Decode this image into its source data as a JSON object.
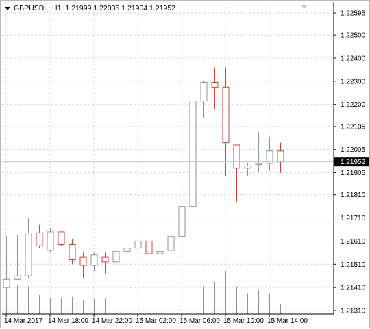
{
  "header": {
    "symbol_timeframe": "GBPUSD...,H1",
    "ohlc": "1.21999 1.22035 1.21904 1.21952",
    "menu_icon": "triangle-down-icon"
  },
  "price_axis": {
    "labels": [
      "1.22595",
      "1.22500",
      "1.22400",
      "1.22300",
      "1.22200",
      "1.22105",
      "1.22005",
      "1.21905",
      "1.21810",
      "1.21710",
      "1.21610",
      "1.21510",
      "1.21410",
      "1.21310"
    ],
    "current_price": "1.21952"
  },
  "time_axis": {
    "labels": [
      "14 Mar 2017",
      "14 Mar 18:00",
      "14 Mar 22:00",
      "15 Mar 02:00",
      "15 Mar 06:00",
      "15 Mar 10:00",
      "15 Mar 14:00"
    ]
  },
  "colors": {
    "bull": "#8a92a8",
    "bear": "#c0493b",
    "grid": "#d4d4d4",
    "volume": "#8a92a8",
    "price_tag_bg": "#000000"
  },
  "chart_data": {
    "type": "candlestick",
    "symbol": "GBPUSD",
    "timeframe": "H1",
    "ylim": [
      1.2126,
      1.2263
    ],
    "grid": true,
    "candles": [
      {
        "o": 1.2141,
        "h": 1.2163,
        "l": 1.21385,
        "c": 1.21445
      },
      {
        "o": 1.21445,
        "h": 1.21635,
        "l": 1.2144,
        "c": 1.2146
      },
      {
        "o": 1.2146,
        "h": 1.2171,
        "l": 1.2145,
        "c": 1.21645
      },
      {
        "o": 1.21645,
        "h": 1.2168,
        "l": 1.2158,
        "c": 1.2159
      },
      {
        "o": 1.2157,
        "h": 1.21665,
        "l": 1.2156,
        "c": 1.2165
      },
      {
        "o": 1.2165,
        "h": 1.2165,
        "l": 1.2159,
        "c": 1.21595
      },
      {
        "o": 1.21595,
        "h": 1.2162,
        "l": 1.2151,
        "c": 1.2153
      },
      {
        "o": 1.2154,
        "h": 1.2156,
        "l": 1.2145,
        "c": 1.21505
      },
      {
        "o": 1.21505,
        "h": 1.2156,
        "l": 1.2148,
        "c": 1.2155
      },
      {
        "o": 1.2154,
        "h": 1.2156,
        "l": 1.2147,
        "c": 1.2152
      },
      {
        "o": 1.2152,
        "h": 1.2158,
        "l": 1.2151,
        "c": 1.21565
      },
      {
        "o": 1.21565,
        "h": 1.216,
        "l": 1.2154,
        "c": 1.2158
      },
      {
        "o": 1.2158,
        "h": 1.2163,
        "l": 1.21565,
        "c": 1.2161
      },
      {
        "o": 1.2161,
        "h": 1.21625,
        "l": 1.2154,
        "c": 1.21555
      },
      {
        "o": 1.21555,
        "h": 1.21575,
        "l": 1.21545,
        "c": 1.21565
      },
      {
        "o": 1.2157,
        "h": 1.2164,
        "l": 1.2156,
        "c": 1.2163
      },
      {
        "o": 1.2163,
        "h": 1.2176,
        "l": 1.2163,
        "c": 1.2176
      },
      {
        "o": 1.2176,
        "h": 1.2257,
        "l": 1.2174,
        "c": 1.22215
      },
      {
        "o": 1.22215,
        "h": 1.223,
        "l": 1.2214,
        "c": 1.22295
      },
      {
        "o": 1.22295,
        "h": 1.2236,
        "l": 1.2218,
        "c": 1.22275
      },
      {
        "o": 1.22275,
        "h": 1.2236,
        "l": 1.2189,
        "c": 1.22035
      },
      {
        "o": 1.22025,
        "h": 1.22025,
        "l": 1.2178,
        "c": 1.21925
      },
      {
        "o": 1.21925,
        "h": 1.21945,
        "l": 1.2189,
        "c": 1.21935
      },
      {
        "o": 1.2194,
        "h": 1.2208,
        "l": 1.2191,
        "c": 1.21945
      },
      {
        "o": 1.21945,
        "h": 1.2206,
        "l": 1.21915,
        "c": 1.21999
      },
      {
        "o": 1.21999,
        "h": 1.22035,
        "l": 1.21904,
        "c": 1.21952
      }
    ],
    "volumes": [
      0.52,
      0.6,
      0.58,
      0.4,
      0.34,
      0.34,
      0.36,
      0.3,
      0.32,
      0.34,
      0.26,
      0.3,
      0.24,
      0.14,
      0.22,
      0.32,
      0.4,
      0.72,
      0.58,
      0.68,
      0.9,
      0.58,
      0.42,
      0.5,
      0.42,
      0.2
    ]
  }
}
